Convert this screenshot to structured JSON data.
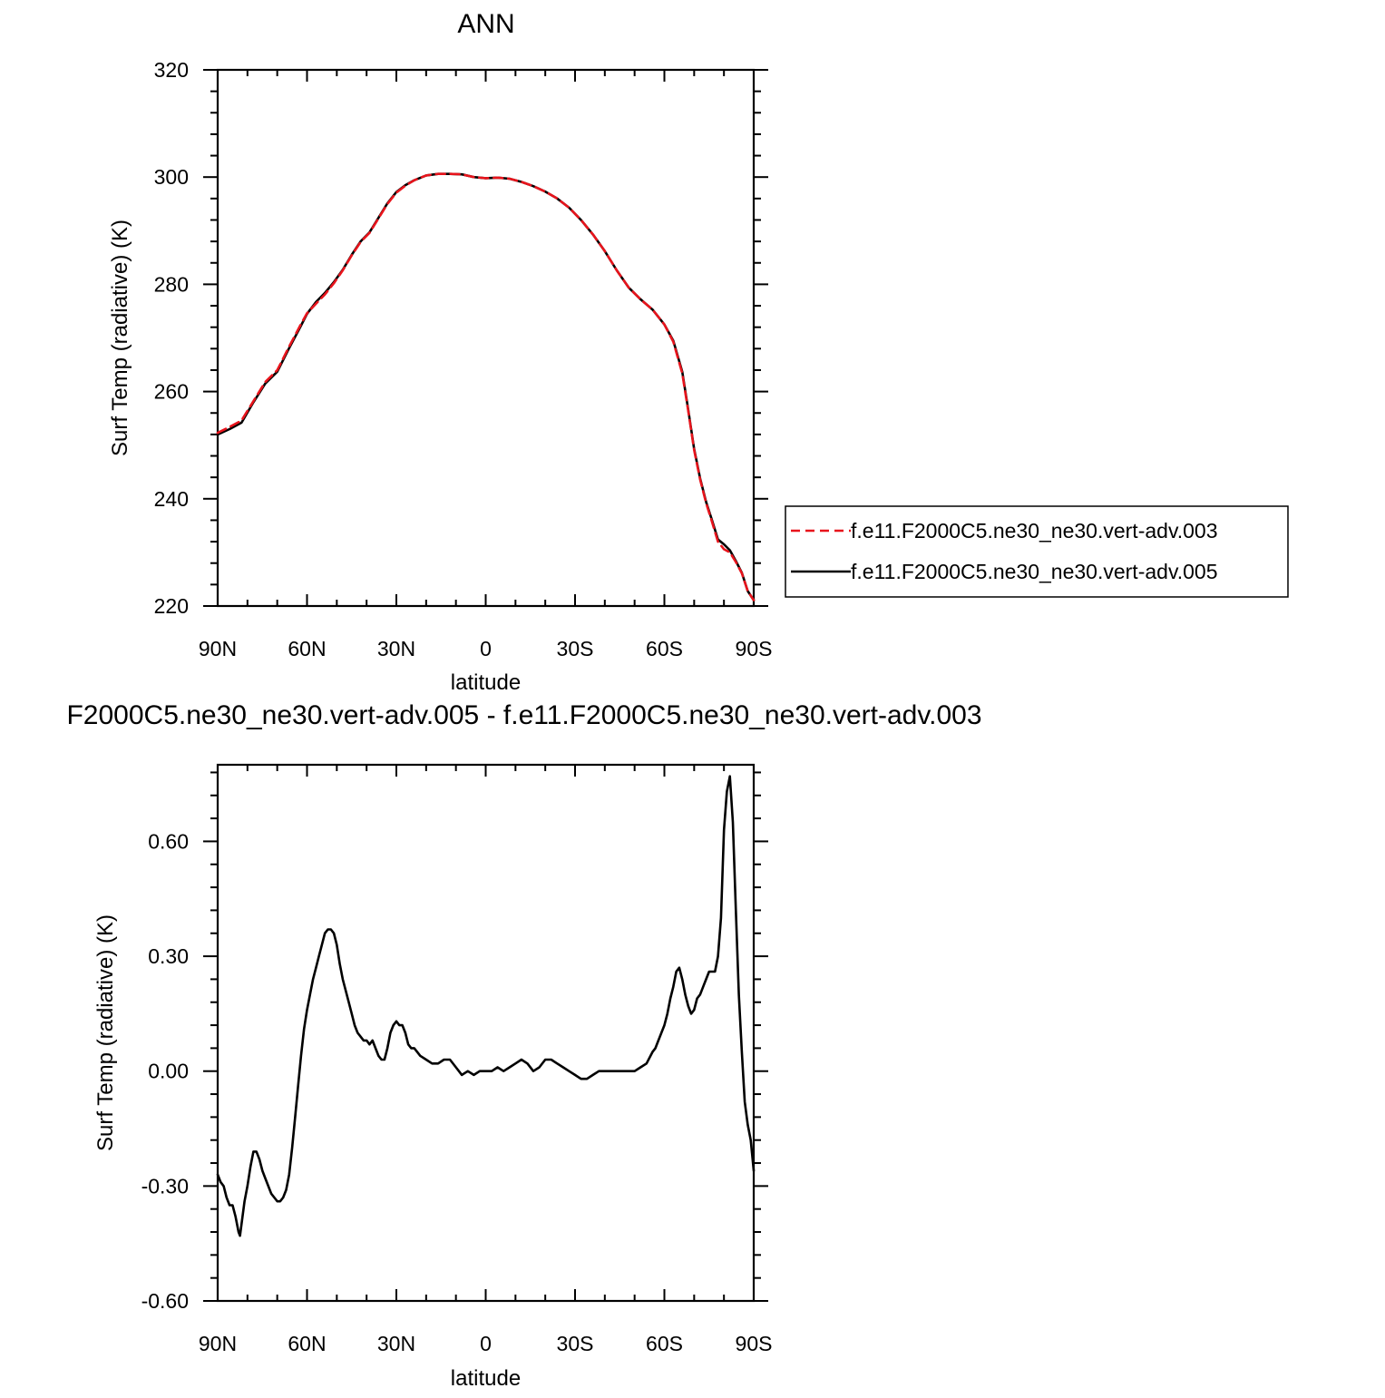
{
  "chart_data": [
    {
      "type": "line",
      "title": "ANN",
      "xlabel": "latitude",
      "ylabel": "Surf Temp (radiative) (K)",
      "xlim": [
        90,
        -90
      ],
      "ylim": [
        220,
        320
      ],
      "x_ticks": [
        90,
        60,
        30,
        0,
        -30,
        -60,
        -90
      ],
      "x_tick_labels": [
        "90N",
        "60N",
        "30N",
        "0",
        "30S",
        "60S",
        "90S"
      ],
      "y_ticks": [
        220,
        240,
        260,
        280,
        300,
        320
      ],
      "y_tick_labels": [
        "220",
        "240",
        "260",
        "280",
        "300",
        "320"
      ],
      "legend_placement": "right",
      "x": [
        90,
        86,
        82,
        78,
        74,
        70,
        66,
        62,
        60,
        57,
        54,
        51,
        48,
        45,
        42,
        39,
        36,
        33,
        30,
        27,
        24,
        20,
        16,
        12,
        8,
        4,
        0,
        -4,
        -8,
        -12,
        -16,
        -20,
        -24,
        -28,
        -32,
        -36,
        -40,
        -44,
        -48,
        -52,
        -56,
        -60,
        -63,
        -66,
        -68,
        -70,
        -72,
        -74,
        -76,
        -78,
        -80,
        -82,
        -84,
        -86,
        -88,
        -90
      ],
      "series": [
        {
          "name": "f.e11.F2000C5.ne30_ne30.vert-adv.003",
          "color": "#e8141c",
          "dash": "dashed",
          "values": [
            252.3,
            253.4,
            254.6,
            258.2,
            261.8,
            264.0,
            268.4,
            272.6,
            274.6,
            276.4,
            278.1,
            280.2,
            282.6,
            285.4,
            287.9,
            289.6,
            292.3,
            295.0,
            297.1,
            298.4,
            299.4,
            300.3,
            300.6,
            300.6,
            300.5,
            300.0,
            299.8,
            299.9,
            299.7,
            299.1,
            298.3,
            297.3,
            296.0,
            294.3,
            292.0,
            289.3,
            286.2,
            282.6,
            279.4,
            277.2,
            275.3,
            272.5,
            269.3,
            263.4,
            256.4,
            249.1,
            243.6,
            239.2,
            235.7,
            232.0,
            230.6,
            230.0,
            228.2,
            226.1,
            222.8,
            221.1
          ]
        },
        {
          "name": "f.e11.F2000C5.ne30_ne30.vert-adv.005",
          "color": "#000000",
          "dash": "solid",
          "values": [
            252.0,
            253.0,
            254.2,
            258.0,
            261.5,
            263.7,
            268.1,
            272.3,
            274.5,
            276.7,
            278.4,
            280.4,
            282.7,
            285.5,
            288.0,
            289.7,
            292.4,
            295.1,
            297.2,
            298.5,
            299.4,
            300.3,
            300.6,
            300.6,
            300.5,
            300.0,
            299.8,
            299.9,
            299.7,
            299.1,
            298.3,
            297.3,
            296.0,
            294.3,
            292.0,
            289.3,
            286.2,
            282.6,
            279.4,
            277.2,
            275.3,
            272.5,
            269.5,
            263.7,
            256.6,
            249.3,
            243.8,
            239.4,
            236.0,
            232.4,
            231.5,
            230.4,
            228.4,
            226.2,
            222.8,
            221.1
          ]
        }
      ]
    },
    {
      "type": "line",
      "title": "F2000C5.ne30_ne30.vert-adv.005 - f.e11.F2000C5.ne30_ne30.vert-adv.003",
      "xlabel": "latitude",
      "ylabel": "Surf Temp (radiative) (K)",
      "xlim": [
        90,
        -90
      ],
      "ylim": [
        -0.6,
        0.8
      ],
      "x_ticks": [
        90,
        60,
        30,
        0,
        -30,
        -60,
        -90
      ],
      "x_tick_labels": [
        "90N",
        "60N",
        "30N",
        "0",
        "30S",
        "60S",
        "90S"
      ],
      "y_ticks": [
        -0.6,
        -0.3,
        0.0,
        0.3,
        0.6
      ],
      "y_tick_labels": [
        "-0.60",
        "-0.30",
        "0.00",
        "0.30",
        "0.60"
      ],
      "x": [
        90,
        89,
        88,
        87,
        86,
        85,
        84,
        83,
        82.5,
        81,
        80,
        79,
        78,
        77,
        76,
        75,
        74,
        73,
        72,
        71,
        70,
        69,
        68,
        67,
        66,
        65,
        64,
        63,
        62,
        61,
        60,
        59,
        58,
        57,
        56,
        55,
        54,
        53,
        52,
        51,
        50,
        49,
        48,
        47,
        46,
        45,
        44,
        43,
        42,
        41,
        40,
        39,
        38,
        37,
        36,
        35,
        34,
        33,
        32,
        31,
        30,
        29,
        28,
        27,
        26,
        25,
        24,
        23,
        22,
        20,
        18,
        16,
        14,
        12,
        10,
        8,
        6,
        4,
        2,
        0,
        -2,
        -4,
        -6,
        -8,
        -10,
        -12,
        -14,
        -16,
        -18,
        -20,
        -22,
        -24,
        -26,
        -28,
        -30,
        -32,
        -34,
        -36,
        -38,
        -40,
        -42,
        -44,
        -46,
        -48,
        -50,
        -52,
        -54,
        -56,
        -57,
        -58,
        -59,
        -60,
        -61,
        -62,
        -63,
        -64,
        -65,
        -66,
        -67,
        -68,
        -69,
        -70,
        -71,
        -72,
        -73,
        -74,
        -75,
        -76,
        -77,
        -78,
        -79,
        -80,
        -81,
        -82,
        -83,
        -84,
        -85,
        -86,
        -87,
        -88,
        -89,
        -90
      ],
      "series": [
        {
          "name": "",
          "color": "#000000",
          "dash": "solid",
          "values": [
            -0.27,
            -0.29,
            -0.3,
            -0.33,
            -0.35,
            -0.35,
            -0.38,
            -0.42,
            -0.43,
            -0.34,
            -0.3,
            -0.25,
            -0.21,
            -0.21,
            -0.23,
            -0.26,
            -0.28,
            -0.3,
            -0.32,
            -0.33,
            -0.34,
            -0.34,
            -0.33,
            -0.31,
            -0.27,
            -0.2,
            -0.12,
            -0.04,
            0.04,
            0.11,
            0.16,
            0.2,
            0.24,
            0.27,
            0.3,
            0.33,
            0.36,
            0.37,
            0.37,
            0.36,
            0.33,
            0.28,
            0.24,
            0.21,
            0.18,
            0.15,
            0.12,
            0.1,
            0.09,
            0.08,
            0.08,
            0.07,
            0.08,
            0.06,
            0.04,
            0.03,
            0.03,
            0.06,
            0.1,
            0.12,
            0.13,
            0.12,
            0.12,
            0.1,
            0.07,
            0.06,
            0.06,
            0.05,
            0.04,
            0.03,
            0.02,
            0.02,
            0.03,
            0.03,
            0.01,
            -0.01,
            0.0,
            -0.01,
            0.0,
            0.0,
            0.0,
            0.01,
            0.0,
            0.01,
            0.02,
            0.03,
            0.02,
            0.0,
            0.01,
            0.03,
            0.03,
            0.02,
            0.01,
            0.0,
            -0.01,
            -0.02,
            -0.02,
            -0.01,
            0.0,
            0.0,
            0.0,
            0.0,
            0.0,
            0.0,
            0.0,
            0.01,
            0.02,
            0.05,
            0.06,
            0.08,
            0.1,
            0.12,
            0.15,
            0.19,
            0.22,
            0.26,
            0.27,
            0.24,
            0.2,
            0.17,
            0.15,
            0.16,
            0.19,
            0.2,
            0.22,
            0.24,
            0.26,
            0.26,
            0.26,
            0.3,
            0.4,
            0.63,
            0.73,
            0.77,
            0.65,
            0.42,
            0.2,
            0.05,
            -0.08,
            -0.14,
            -0.18,
            -0.26
          ]
        }
      ]
    }
  ]
}
